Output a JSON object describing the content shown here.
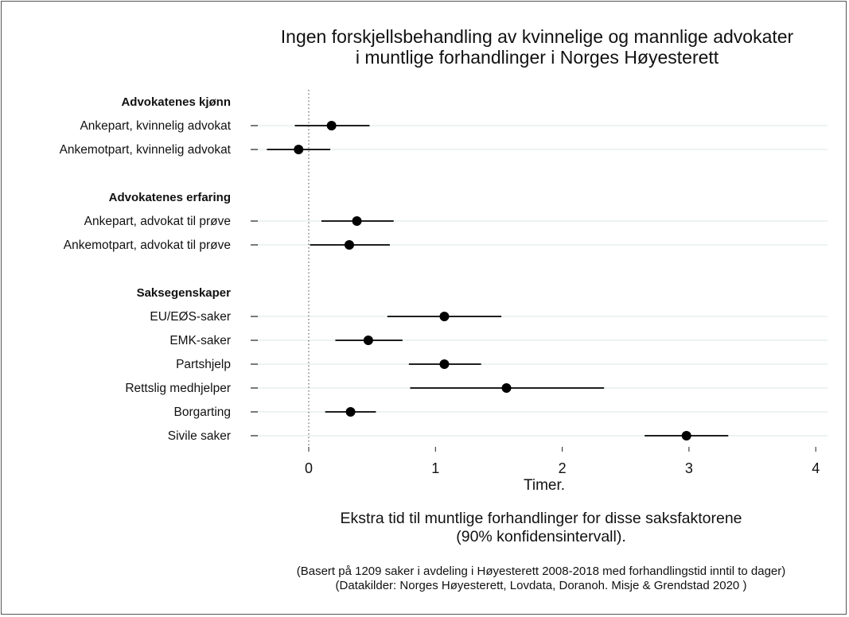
{
  "chart_data": {
    "type": "scatter",
    "subtype": "coefficient-plot-with-confidence-intervals",
    "title_lines": [
      "Ingen forskjellsbehandling av kvinnelige og mannlige advokater",
      "i  muntlige forhandlinger i Norges Høyesterett"
    ],
    "xlabel": "Timer.",
    "xlim": [
      -0.45,
      4.1
    ],
    "xticks": [
      0,
      1,
      2,
      3,
      4
    ],
    "reference_line_x": 0,
    "grid": "horizontal row lines",
    "groups": [
      {
        "name": "Advokatenes kjønn",
        "items": [
          {
            "label": "Ankepart, kvinnelig advokat",
            "estimate": 0.18,
            "ci": [
              -0.11,
              0.48
            ]
          },
          {
            "label": "Ankemotpart, kvinnelig advokat",
            "estimate": -0.08,
            "ci": [
              -0.33,
              0.17
            ]
          }
        ]
      },
      {
        "name": "Advokatenes erfaring",
        "items": [
          {
            "label": "Ankepart, advokat til prøve",
            "estimate": 0.38,
            "ci": [
              0.1,
              0.67
            ]
          },
          {
            "label": "Ankemotpart, advokat til prøve",
            "estimate": 0.32,
            "ci": [
              0.01,
              0.64
            ]
          }
        ]
      },
      {
        "name": "Saksegenskaper",
        "items": [
          {
            "label": "EU/EØS-saker",
            "estimate": 1.07,
            "ci": [
              0.62,
              1.52
            ]
          },
          {
            "label": "EMK-saker",
            "estimate": 0.47,
            "ci": [
              0.21,
              0.74
            ]
          },
          {
            "label": "Partshjelp",
            "estimate": 1.07,
            "ci": [
              0.79,
              1.36
            ]
          },
          {
            "label": "Rettslig medhjelper",
            "estimate": 1.56,
            "ci": [
              0.8,
              2.33
            ]
          },
          {
            "label": "Borgarting",
            "estimate": 0.33,
            "ci": [
              0.13,
              0.53
            ]
          },
          {
            "label": "Sivile saker",
            "estimate": 2.98,
            "ci": [
              2.65,
              3.31
            ]
          }
        ]
      }
    ]
  },
  "caption_lines": [
    "Ekstra tid til muntlige forhandlinger for disse saksfaktorene",
    "(90% konfidensintervall)."
  ],
  "note_lines": [
    "(Basert på 1209 saker i avdeling i Høyesterett 2008-2018 med forhandlingstid inntil to dager)",
    "(Datakilder: Norges Høyesterett, Lovdata, Doranoh. Misje & Grendstad 2020 )"
  ]
}
